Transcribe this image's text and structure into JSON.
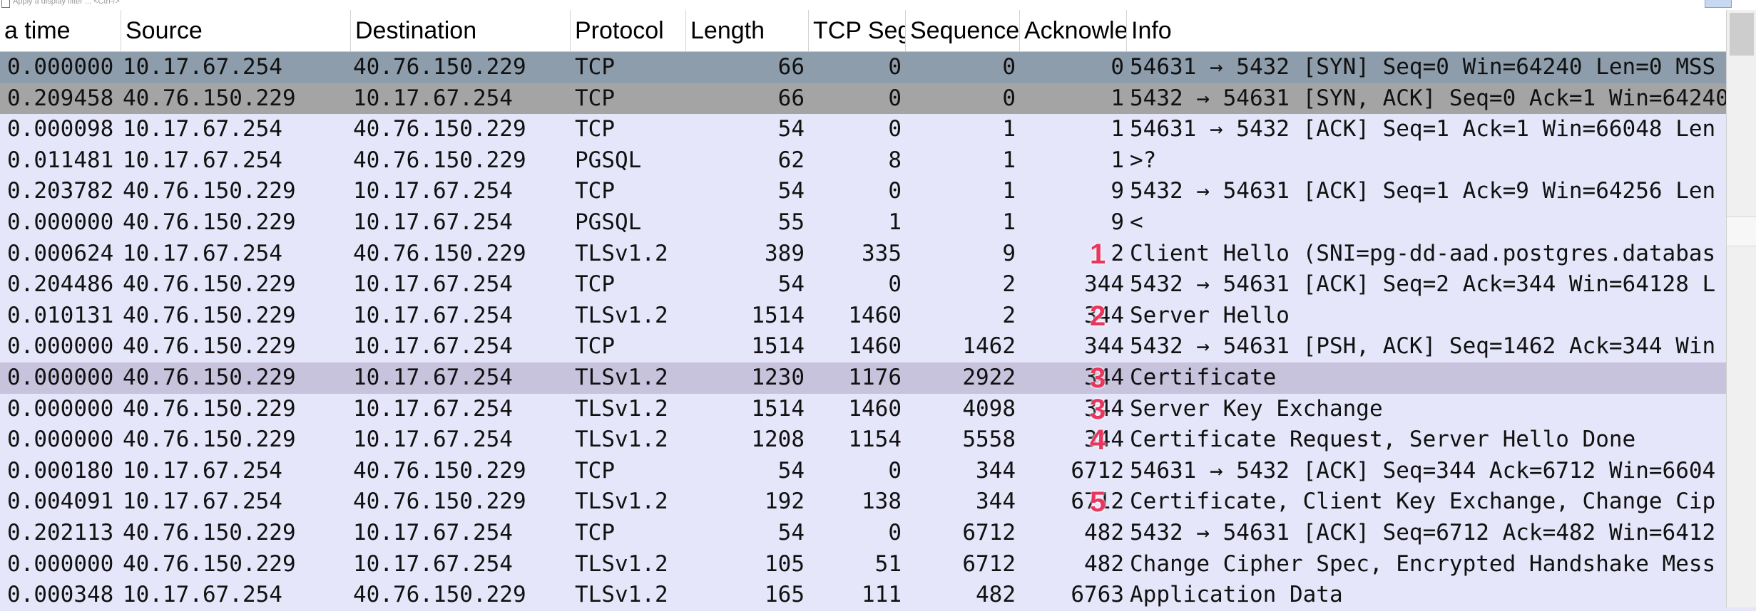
{
  "filter": {
    "placeholder": "Apply a display filter ... <Ctrl-/>"
  },
  "columns": [
    "a time",
    "Source",
    "Destination",
    "Protocol",
    "Length",
    "TCP Seg",
    "Sequence",
    "Acknowle",
    "Info"
  ],
  "packets": [
    {
      "time": "0.000000",
      "src": "10.17.67.254",
      "dst": "40.76.150.229",
      "proto": "TCP",
      "len": "66",
      "tcpseg": "0",
      "seq": "0",
      "ack": "0",
      "info": "54631 → 5432 [SYN] Seq=0 Win=64240 Len=0 MSS",
      "style": "sel1",
      "badge": ""
    },
    {
      "time": "0.209458",
      "src": "40.76.150.229",
      "dst": "10.17.67.254",
      "proto": "TCP",
      "len": "66",
      "tcpseg": "0",
      "seq": "0",
      "ack": "1",
      "info": "5432 → 54631 [SYN, ACK] Seq=0 Ack=1 Win=64240",
      "style": "sel2",
      "badge": ""
    },
    {
      "time": "0.000098",
      "src": "10.17.67.254",
      "dst": "40.76.150.229",
      "proto": "TCP",
      "len": "54",
      "tcpseg": "0",
      "seq": "1",
      "ack": "1",
      "info": "54631 → 5432 [ACK] Seq=1 Ack=1 Win=66048 Len",
      "style": "",
      "badge": ""
    },
    {
      "time": "0.011481",
      "src": "10.17.67.254",
      "dst": "40.76.150.229",
      "proto": "PGSQL",
      "len": "62",
      "tcpseg": "8",
      "seq": "1",
      "ack": "1",
      "info": ">?",
      "style": "",
      "badge": ""
    },
    {
      "time": "0.203782",
      "src": "40.76.150.229",
      "dst": "10.17.67.254",
      "proto": "TCP",
      "len": "54",
      "tcpseg": "0",
      "seq": "1",
      "ack": "9",
      "info": "5432 → 54631 [ACK] Seq=1 Ack=9 Win=64256 Len",
      "style": "",
      "badge": ""
    },
    {
      "time": "0.000000",
      "src": "40.76.150.229",
      "dst": "10.17.67.254",
      "proto": "PGSQL",
      "len": "55",
      "tcpseg": "1",
      "seq": "1",
      "ack": "9",
      "info": "<",
      "style": "",
      "badge": ""
    },
    {
      "time": "0.000624",
      "src": "10.17.67.254",
      "dst": "40.76.150.229",
      "proto": "TLSv1.2",
      "len": "389",
      "tcpseg": "335",
      "seq": "9",
      "ack": "2",
      "info": "Client Hello (SNI=pg-dd-aad.postgres.databas",
      "style": "",
      "badge": "1"
    },
    {
      "time": "0.204486",
      "src": "40.76.150.229",
      "dst": "10.17.67.254",
      "proto": "TCP",
      "len": "54",
      "tcpseg": "0",
      "seq": "2",
      "ack": "344",
      "info": "5432 → 54631 [ACK] Seq=2 Ack=344 Win=64128 L",
      "style": "",
      "badge": ""
    },
    {
      "time": "0.010131",
      "src": "40.76.150.229",
      "dst": "10.17.67.254",
      "proto": "TLSv1.2",
      "len": "1514",
      "tcpseg": "1460",
      "seq": "2",
      "ack": "344",
      "info": "Server Hello",
      "style": "",
      "badge": "2"
    },
    {
      "time": "0.000000",
      "src": "40.76.150.229",
      "dst": "10.17.67.254",
      "proto": "TCP",
      "len": "1514",
      "tcpseg": "1460",
      "seq": "1462",
      "ack": "344",
      "info": "5432 → 54631 [PSH, ACK] Seq=1462 Ack=344 Win",
      "style": "",
      "badge": ""
    },
    {
      "time": "0.000000",
      "src": "40.76.150.229",
      "dst": "10.17.67.254",
      "proto": "TLSv1.2",
      "len": "1230",
      "tcpseg": "1176",
      "seq": "2922",
      "ack": "344",
      "info": "Certificate",
      "style": "hl",
      "badge": "3"
    },
    {
      "time": "0.000000",
      "src": "40.76.150.229",
      "dst": "10.17.67.254",
      "proto": "TLSv1.2",
      "len": "1514",
      "tcpseg": "1460",
      "seq": "4098",
      "ack": "344",
      "info": "Server Key Exchange",
      "style": "",
      "badge": "3"
    },
    {
      "time": "0.000000",
      "src": "40.76.150.229",
      "dst": "10.17.67.254",
      "proto": "TLSv1.2",
      "len": "1208",
      "tcpseg": "1154",
      "seq": "5558",
      "ack": "344",
      "info": "Certificate Request, Server Hello Done",
      "style": "",
      "badge": "4"
    },
    {
      "time": "0.000180",
      "src": "10.17.67.254",
      "dst": "40.76.150.229",
      "proto": "TCP",
      "len": "54",
      "tcpseg": "0",
      "seq": "344",
      "ack": "6712",
      "info": "54631 → 5432 [ACK] Seq=344 Ack=6712 Win=6604",
      "style": "",
      "badge": ""
    },
    {
      "time": "0.004091",
      "src": "10.17.67.254",
      "dst": "40.76.150.229",
      "proto": "TLSv1.2",
      "len": "192",
      "tcpseg": "138",
      "seq": "344",
      "ack": "6712",
      "info": "Certificate, Client Key Exchange, Change Cip",
      "style": "",
      "badge": "5"
    },
    {
      "time": "0.202113",
      "src": "40.76.150.229",
      "dst": "10.17.67.254",
      "proto": "TCP",
      "len": "54",
      "tcpseg": "0",
      "seq": "6712",
      "ack": "482",
      "info": "5432 → 54631 [ACK] Seq=6712 Ack=482 Win=6412",
      "style": "",
      "badge": ""
    },
    {
      "time": "0.000000",
      "src": "40.76.150.229",
      "dst": "10.17.67.254",
      "proto": "TLSv1.2",
      "len": "105",
      "tcpseg": "51",
      "seq": "6712",
      "ack": "482",
      "info": "Change Cipher Spec, Encrypted Handshake Mess",
      "style": "",
      "badge": ""
    },
    {
      "time": "0.000348",
      "src": "10.17.67.254",
      "dst": "40.76.150.229",
      "proto": "TLSv1.2",
      "len": "165",
      "tcpseg": "111",
      "seq": "482",
      "ack": "6763",
      "info": "Application Data",
      "style": "",
      "badge": ""
    }
  ],
  "colors": {
    "row_bg": "#e6e6fa",
    "syn_bg": "#8e9dac",
    "synack_bg": "#a4a4a4",
    "highlight_bg": "#c7c3dc",
    "badge": "#e8365f"
  }
}
